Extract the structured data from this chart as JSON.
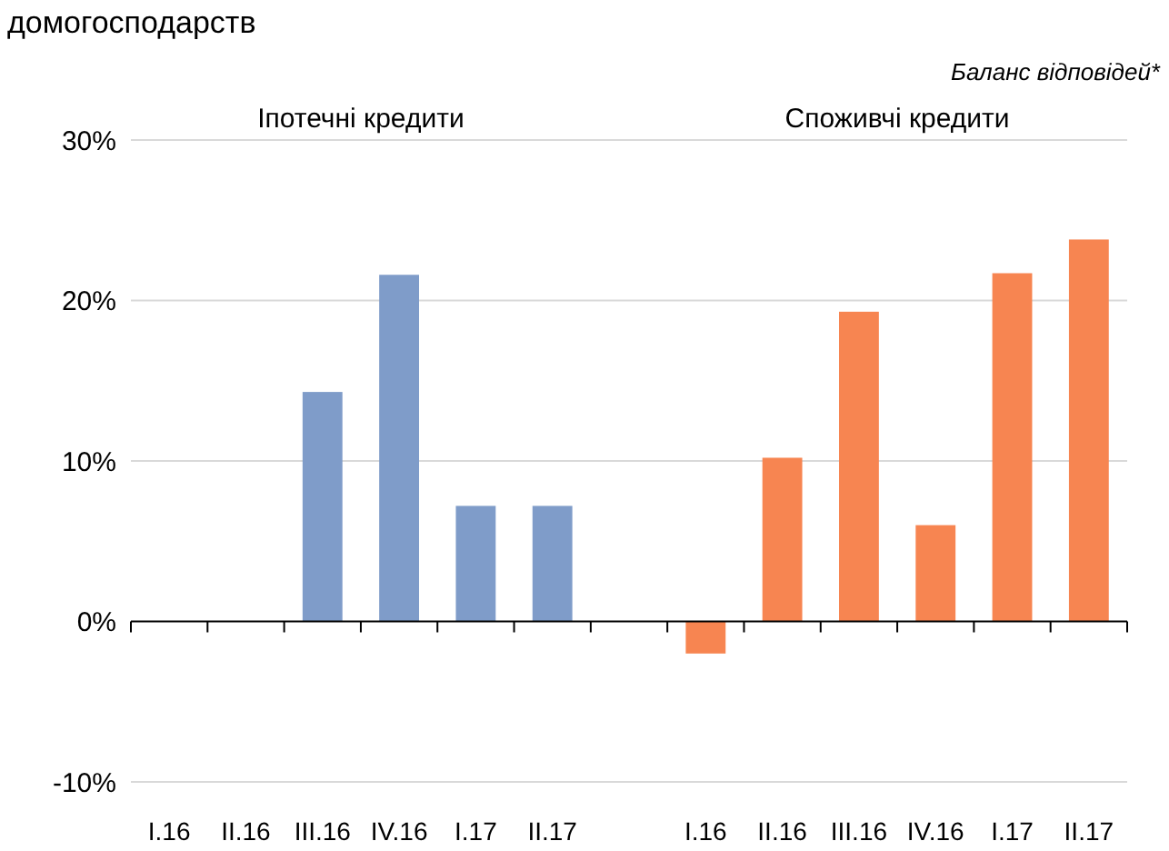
{
  "chart_data": {
    "type": "bar",
    "title": "домогосподарств",
    "annotations": [
      "Баланс відповідей*",
      "Іпотечні кредити",
      "Споживчі кредити"
    ],
    "categories": [
      "I.16",
      "II.16",
      "III.16",
      "IV.16",
      "I.17",
      "II.17",
      null,
      "I.16",
      "II.16",
      "III.16",
      "IV.16",
      "I.17",
      "II.17"
    ],
    "series": [
      {
        "color": "#7f9cc9",
        "values": [
          null,
          null,
          14.3,
          21.6,
          7.2,
          7.2,
          null,
          null,
          null,
          null,
          null,
          null,
          null
        ]
      },
      {
        "color": "#f78551",
        "values": [
          null,
          null,
          null,
          null,
          null,
          null,
          null,
          -2.0,
          10.2,
          19.3,
          6.0,
          21.7,
          23.8
        ]
      }
    ],
    "ylim": [
      -10,
      30
    ],
    "yticks": [
      {
        "value": -10,
        "label": "-10%"
      },
      {
        "value": 0,
        "label": "0%"
      },
      {
        "value": 10,
        "label": "10%"
      },
      {
        "value": 20,
        "label": "20%"
      },
      {
        "value": 30,
        "label": "30%"
      }
    ],
    "grid": "y"
  }
}
